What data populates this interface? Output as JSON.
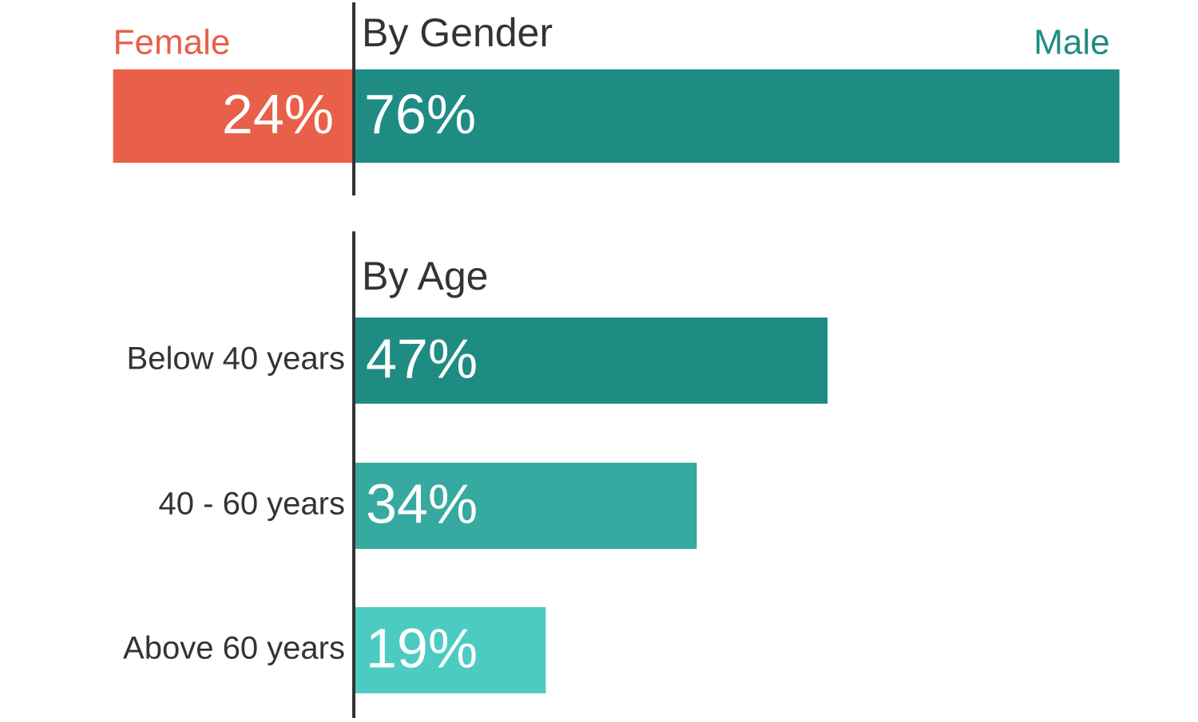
{
  "chart_data": [
    {
      "type": "diverging-bar",
      "title": "By Gender",
      "series": [
        {
          "name": "Female",
          "color": "#e8604a",
          "values": [
            24
          ],
          "value_labels": [
            "24%"
          ]
        },
        {
          "name": "Male",
          "color": "#1f8c84",
          "values": [
            76
          ],
          "value_labels": [
            "76%"
          ]
        }
      ]
    },
    {
      "type": "bar",
      "orientation": "horizontal",
      "title": "By Age",
      "categories": [
        "Below 40 years",
        "40 - 60 years",
        "Above 60 years"
      ],
      "values": [
        47,
        34,
        19
      ],
      "value_labels": [
        "47%",
        "34%",
        "19%"
      ],
      "colors": [
        "#1f8c84",
        "#36a9a0",
        "#4ccbc2"
      ]
    }
  ]
}
